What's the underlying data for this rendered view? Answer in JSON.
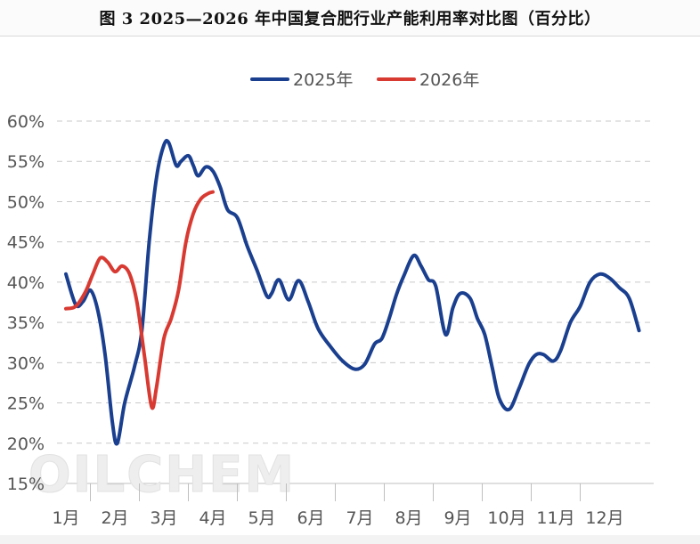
{
  "figure_title": "图 3 2025—2026 年中国复合肥行业产能利用率对比图（百分比）",
  "watermark": "OILCHEM",
  "chart_data": {
    "type": "line",
    "title": "图 3 2025—2026 年中国复合肥行业产能利用率对比图（百分比）",
    "xlabel": "",
    "ylabel": "",
    "ylim": [
      15,
      60
    ],
    "yticks": [
      "15%",
      "20%",
      "25%",
      "30%",
      "35%",
      "40%",
      "45%",
      "50%",
      "55%",
      "60%"
    ],
    "xticks": [
      "1月",
      "2月",
      "3月",
      "4月",
      "5月",
      "6月",
      "7月",
      "8月",
      "9月",
      "10月",
      "11月",
      "12月"
    ],
    "xlim": [
      0,
      12.4
    ],
    "grid": true,
    "legend_position": "top-center",
    "series": [
      {
        "name": "2025年",
        "color": "#1a3f8f",
        "points": [
          [
            0.0,
            41.0
          ],
          [
            0.2,
            37.2
          ],
          [
            0.35,
            37.6
          ],
          [
            0.5,
            39.0
          ],
          [
            0.65,
            36.5
          ],
          [
            0.8,
            31.0
          ],
          [
            0.95,
            22.5
          ],
          [
            1.05,
            20.0
          ],
          [
            1.2,
            25.0
          ],
          [
            1.4,
            29.5
          ],
          [
            1.55,
            34.0
          ],
          [
            1.7,
            45.0
          ],
          [
            1.85,
            53.0
          ],
          [
            2.0,
            57.0
          ],
          [
            2.1,
            57.3
          ],
          [
            2.25,
            54.5
          ],
          [
            2.35,
            55.0
          ],
          [
            2.5,
            55.7
          ],
          [
            2.6,
            54.5
          ],
          [
            2.7,
            53.2
          ],
          [
            2.85,
            54.3
          ],
          [
            3.0,
            53.8
          ],
          [
            3.15,
            51.8
          ],
          [
            3.3,
            49.0
          ],
          [
            3.5,
            48.0
          ],
          [
            3.7,
            44.5
          ],
          [
            3.9,
            41.5
          ],
          [
            4.1,
            38.3
          ],
          [
            4.2,
            38.6
          ],
          [
            4.35,
            40.3
          ],
          [
            4.55,
            37.8
          ],
          [
            4.75,
            40.2
          ],
          [
            4.95,
            37.5
          ],
          [
            5.15,
            34.2
          ],
          [
            5.4,
            32.0
          ],
          [
            5.65,
            30.2
          ],
          [
            5.9,
            29.2
          ],
          [
            6.1,
            29.8
          ],
          [
            6.3,
            32.3
          ],
          [
            6.45,
            33.0
          ],
          [
            6.6,
            35.5
          ],
          [
            6.75,
            38.5
          ],
          [
            6.9,
            40.8
          ],
          [
            7.1,
            43.3
          ],
          [
            7.25,
            42.0
          ],
          [
            7.4,
            40.3
          ],
          [
            7.55,
            39.5
          ],
          [
            7.75,
            33.5
          ],
          [
            7.9,
            36.8
          ],
          [
            8.05,
            38.6
          ],
          [
            8.25,
            38.0
          ],
          [
            8.4,
            35.5
          ],
          [
            8.55,
            33.5
          ],
          [
            8.7,
            29.5
          ],
          [
            8.85,
            25.5
          ],
          [
            9.05,
            24.2
          ],
          [
            9.25,
            26.8
          ],
          [
            9.45,
            29.8
          ],
          [
            9.6,
            31.0
          ],
          [
            9.75,
            31.0
          ],
          [
            9.95,
            30.2
          ],
          [
            10.1,
            31.5
          ],
          [
            10.3,
            35.0
          ],
          [
            10.5,
            37.0
          ],
          [
            10.7,
            40.0
          ],
          [
            10.9,
            41.0
          ],
          [
            11.1,
            40.5
          ],
          [
            11.3,
            39.3
          ],
          [
            11.5,
            38.0
          ],
          [
            11.7,
            34.0
          ]
        ]
      },
      {
        "name": "2026年",
        "color": "#d83a32",
        "points": [
          [
            0.0,
            36.7
          ],
          [
            0.2,
            37.0
          ],
          [
            0.4,
            38.8
          ],
          [
            0.55,
            41.0
          ],
          [
            0.7,
            43.0
          ],
          [
            0.85,
            42.5
          ],
          [
            1.0,
            41.3
          ],
          [
            1.15,
            42.0
          ],
          [
            1.3,
            41.0
          ],
          [
            1.45,
            37.5
          ],
          [
            1.6,
            31.0
          ],
          [
            1.75,
            24.5
          ],
          [
            1.85,
            27.0
          ],
          [
            2.0,
            33.0
          ],
          [
            2.15,
            35.5
          ],
          [
            2.3,
            39.0
          ],
          [
            2.45,
            45.0
          ],
          [
            2.6,
            48.5
          ],
          [
            2.75,
            50.3
          ],
          [
            2.9,
            51.0
          ],
          [
            3.0,
            51.2
          ]
        ]
      }
    ]
  }
}
